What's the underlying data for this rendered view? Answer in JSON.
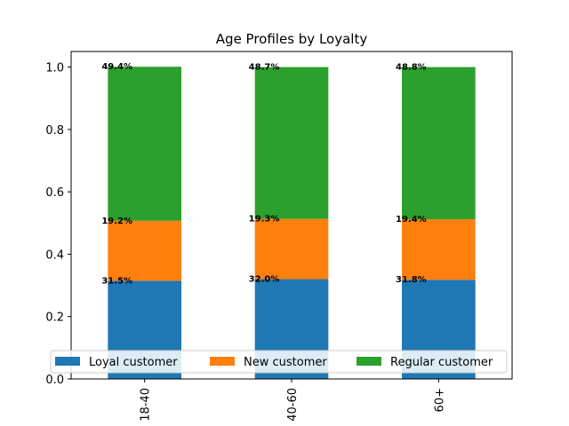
{
  "chart_data": {
    "type": "bar",
    "stacked": true,
    "title": "Age Profiles by Loyalty",
    "xlabel": "",
    "ylabel": "",
    "categories": [
      "18-40",
      "40-60",
      "60+"
    ],
    "ylim": [
      0,
      1.05
    ],
    "yticks": [
      "0.0",
      "0.2",
      "0.4",
      "0.6",
      "0.8",
      "1.0"
    ],
    "series": [
      {
        "name": "Loyal customer",
        "color": "#1f77b4",
        "values": [
          0.315,
          0.32,
          0.318
        ],
        "labels": [
          "31.5%",
          "32.0%",
          "31.8%"
        ]
      },
      {
        "name": "New customer",
        "color": "#ff7f0e",
        "values": [
          0.192,
          0.193,
          0.194
        ],
        "labels": [
          "19.2%",
          "19.3%",
          "19.4%"
        ]
      },
      {
        "name": "Regular customer",
        "color": "#2ca02c",
        "values": [
          0.494,
          0.487,
          0.488
        ],
        "labels": [
          "49.4%",
          "48.7%",
          "48.8%"
        ]
      }
    ],
    "legend_position": "lower center",
    "grid": false
  }
}
